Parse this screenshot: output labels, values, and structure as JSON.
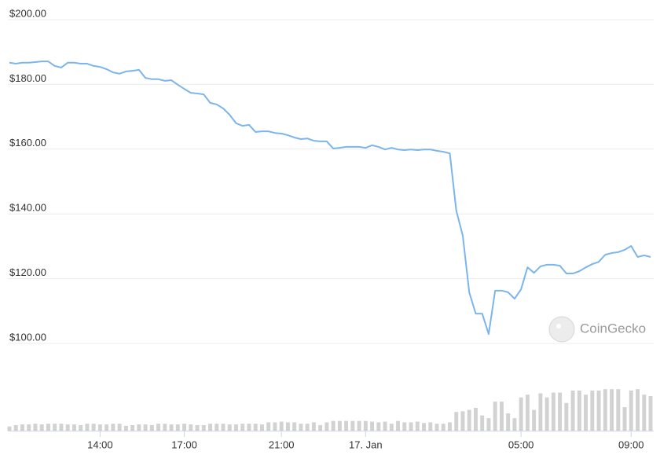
{
  "chart_data": {
    "type": "line",
    "watermark": "CoinGecko",
    "categories": [
      null,
      null,
      null,
      null,
      null,
      null,
      null,
      null,
      null,
      null,
      null,
      null,
      null,
      null,
      "14:00",
      null,
      null,
      null,
      null,
      null,
      null,
      null,
      null,
      null,
      null,
      null,
      null,
      "17:00",
      null,
      null,
      null,
      null,
      null,
      null,
      null,
      null,
      null,
      null,
      null,
      null,
      null,
      null,
      "21:00",
      null,
      null,
      null,
      null,
      null,
      null,
      null,
      null,
      null,
      null,
      null,
      null,
      "17. Jan",
      null,
      null,
      null,
      null,
      null,
      null,
      null,
      null,
      null,
      null,
      null,
      null,
      null,
      null,
      null,
      null,
      null,
      null,
      null,
      null,
      null,
      null,
      null,
      "05:00",
      null,
      null,
      null,
      null,
      null,
      null,
      null,
      null,
      null,
      null,
      null,
      null,
      null,
      null,
      null,
      null,
      "09:00",
      null,
      null,
      null
    ],
    "series": [
      {
        "type": "line",
        "color": "#7cb5ec",
        "values": [
          186.7,
          186.4,
          186.7,
          186.7,
          186.9,
          187.1,
          187.1,
          185.7,
          185.2,
          186.7,
          186.7,
          186.4,
          186.4,
          185.7,
          185.4,
          184.7,
          183.7,
          183.3,
          184.0,
          184.2,
          184.5,
          182.0,
          181.6,
          181.6,
          181.1,
          181.3,
          179.9,
          178.6,
          177.4,
          177.2,
          176.9,
          174.3,
          173.8,
          172.6,
          170.6,
          168.0,
          167.2,
          167.5,
          165.3,
          165.5,
          165.5,
          165.0,
          164.8,
          164.3,
          163.6,
          163.1,
          163.3,
          162.6,
          162.4,
          162.4,
          160.2,
          160.4,
          160.7,
          160.7,
          160.7,
          160.4,
          161.2,
          160.7,
          159.9,
          160.4,
          159.9,
          159.7,
          159.9,
          159.7,
          159.9,
          159.9,
          159.5,
          159.2,
          158.7,
          141.0,
          133.3,
          115.8,
          109.2,
          109.2,
          102.9,
          116.3,
          116.3,
          115.8,
          113.8,
          116.7,
          123.5,
          121.8,
          123.8,
          124.3,
          124.3,
          124.0,
          121.6,
          121.6,
          122.3,
          123.5,
          124.5,
          125.2,
          127.4,
          127.9,
          128.2,
          128.9,
          130.1,
          126.7,
          127.2,
          126.7
        ]
      },
      {
        "type": "bar",
        "axis": "y2",
        "color": "#d2d2d2",
        "values": [
          6,
          8,
          9,
          9,
          10,
          9,
          10,
          10,
          10,
          9,
          9,
          8,
          10,
          10,
          9,
          9,
          10,
          10,
          7,
          8,
          9,
          9,
          8,
          10,
          10,
          9,
          9,
          10,
          9,
          8,
          8,
          10,
          10,
          10,
          9,
          9,
          10,
          10,
          10,
          9,
          12,
          12,
          13,
          12,
          12,
          10,
          10,
          12,
          8,
          12,
          14,
          14,
          14,
          14,
          14,
          14,
          13,
          12,
          13,
          10,
          14,
          12,
          12,
          13,
          11,
          12,
          10,
          10,
          12,
          27,
          28,
          30,
          33,
          22,
          18,
          42,
          42,
          25,
          18,
          48,
          52,
          30,
          54,
          48,
          55,
          55,
          40,
          58,
          58,
          52,
          58,
          58,
          60,
          60,
          60,
          34,
          58,
          60,
          52,
          50
        ]
      }
    ],
    "ylim": [
      100,
      200
    ],
    "yticks": [
      {
        "value": 100,
        "label": "$100.00"
      },
      {
        "value": 120,
        "label": "$120.00"
      },
      {
        "value": 140,
        "label": "$140.00"
      },
      {
        "value": 160,
        "label": "$160.00"
      },
      {
        "value": 180,
        "label": "$180.00"
      },
      {
        "value": 200,
        "label": "$200.00"
      }
    ],
    "y2lim": [
      0,
      100
    ],
    "grid": true
  }
}
